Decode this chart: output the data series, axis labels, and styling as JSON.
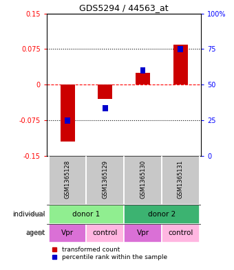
{
  "title": "GDS5294 / 44563_at",
  "categories": [
    "GSM1365128",
    "GSM1365129",
    "GSM1365130",
    "GSM1365131"
  ],
  "red_values": [
    -0.12,
    -0.03,
    0.025,
    0.085
  ],
  "blue_values": [
    -0.075,
    -0.05,
    0.03,
    0.075
  ],
  "ylim": [
    -0.15,
    0.15
  ],
  "yticks_left": [
    -0.15,
    -0.075,
    0,
    0.075,
    0.15
  ],
  "yticks_left_labels": [
    "-0.15",
    "-0.075",
    "0",
    "0.075",
    "0.15"
  ],
  "yticks_right_labels": [
    "0",
    "25",
    "50",
    "75",
    "100%"
  ],
  "dotted_lines_black": [
    -0.075,
    0.075
  ],
  "zero_line": 0,
  "sample_bg_color": "#C8C8C8",
  "donor1_color": "#90EE90",
  "donor2_color": "#3CB371",
  "vpr_color": "#DA70D6",
  "control_color": "#FFB6E1",
  "red_bar_color": "#CC0000",
  "blue_marker_color": "#0000CC",
  "donors": [
    [
      "donor 1",
      0,
      2
    ],
    [
      "donor 2",
      2,
      4
    ]
  ],
  "agents": [
    "Vpr",
    "control",
    "Vpr",
    "control"
  ],
  "legend_red": "transformed count",
  "legend_blue": "percentile rank within the sample"
}
